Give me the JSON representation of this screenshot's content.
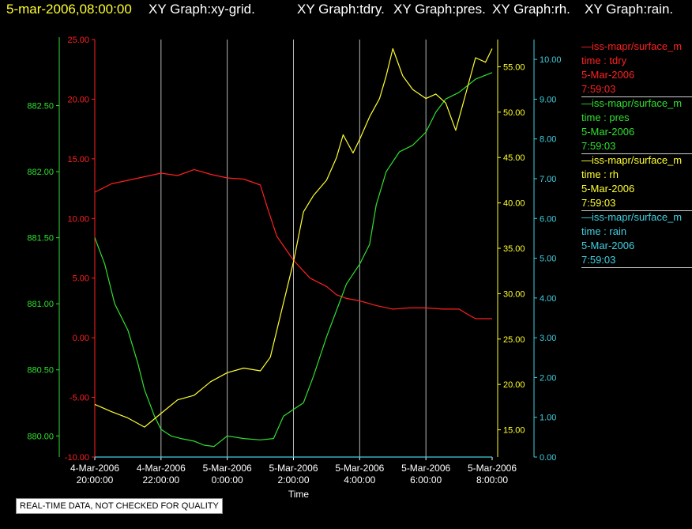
{
  "header": {
    "timestamp": "5-mar-2006,08:00:00",
    "graphs": [
      "XY Graph:xy-grid.",
      "XY Graph:tdry.",
      "XY Graph:pres.",
      "XY Graph:rh.",
      "XY Graph:rain."
    ]
  },
  "legend": [
    {
      "source": "—iss-mapr/surface_m",
      "var": "time : tdry",
      "date": "5-Mar-2006",
      "time": "7:59:03",
      "color": "#ff2020"
    },
    {
      "source": "—iss-mapr/surface_m",
      "var": "time : pres",
      "date": "5-Mar-2006",
      "time": "7:59:03",
      "color": "#30e030"
    },
    {
      "source": "—iss-mapr/surface_m",
      "var": "time : rh",
      "date": "5-Mar-2006",
      "time": "7:59:03",
      "color": "#ffff30"
    },
    {
      "source": "—iss-mapr/surface_m",
      "var": "time : rain",
      "date": "5-Mar-2006",
      "time": "7:59:03",
      "color": "#40d0e0"
    }
  ],
  "quality_note": "REAL-TIME DATA, NOT CHECKED FOR QUALITY",
  "chart_data": {
    "type": "line",
    "xlabel": "Time",
    "x_ticks": [
      {
        "date": "4-Mar-2006",
        "time": "20:00:00",
        "hours": 20
      },
      {
        "date": "4-Mar-2006",
        "time": "22:00:00",
        "hours": 22
      },
      {
        "date": "5-Mar-2006",
        "time": "0:00:00",
        "hours": 24
      },
      {
        "date": "5-Mar-2006",
        "time": "2:00:00",
        "hours": 26
      },
      {
        "date": "5-Mar-2006",
        "time": "4:00:00",
        "hours": 28
      },
      {
        "date": "5-Mar-2006",
        "time": "6:00:00",
        "hours": 30
      },
      {
        "date": "5-Mar-2006",
        "time": "8:00:00",
        "hours": 32
      }
    ],
    "x_range_hours": [
      20,
      32
    ],
    "grid": true,
    "axes": {
      "tdry": {
        "color": "#ff2020",
        "range": [
          -10,
          25
        ],
        "ticks": [
          "-10.00",
          "-5.00",
          "0.00",
          "5.00",
          "10.00",
          "15.00",
          "20.00",
          "25.00"
        ]
      },
      "pres": {
        "color": "#30e030",
        "range": [
          879.84,
          883.0
        ],
        "ticks": [
          "880.00",
          "880.50",
          "881.00",
          "881.50",
          "882.00",
          "882.50"
        ]
      },
      "rh": {
        "color": "#ffff30",
        "range": [
          12.0,
          58.0
        ],
        "ticks": [
          "15.00",
          "20.00",
          "25.00",
          "30.00",
          "35.00",
          "40.00",
          "45.00",
          "50.00",
          "55.00"
        ]
      },
      "rain": {
        "color": "#40d0e0",
        "range": [
          0.0,
          10.5
        ],
        "ticks": [
          "0.00",
          "1.00",
          "2.00",
          "3.00",
          "4.00",
          "5.00",
          "6.00",
          "7.00",
          "8.00",
          "9.00",
          "10.00"
        ]
      }
    },
    "series": [
      {
        "axis": "tdry",
        "name": "time : tdry",
        "points": [
          [
            20.0,
            12.2
          ],
          [
            20.5,
            12.9
          ],
          [
            21.0,
            13.2
          ],
          [
            21.5,
            13.5
          ],
          [
            22.0,
            13.8
          ],
          [
            22.5,
            13.6
          ],
          [
            23.0,
            14.1
          ],
          [
            23.5,
            13.7
          ],
          [
            24.0,
            13.4
          ],
          [
            24.5,
            13.3
          ],
          [
            25.0,
            12.8
          ],
          [
            25.2,
            11.0
          ],
          [
            25.5,
            8.5
          ],
          [
            26.0,
            6.5
          ],
          [
            26.5,
            5.0
          ],
          [
            27.0,
            4.3
          ],
          [
            27.3,
            3.6
          ],
          [
            27.6,
            3.3
          ],
          [
            28.0,
            3.1
          ],
          [
            28.5,
            2.7
          ],
          [
            29.0,
            2.4
          ],
          [
            29.5,
            2.5
          ],
          [
            30.0,
            2.5
          ],
          [
            30.5,
            2.4
          ],
          [
            31.0,
            2.4
          ],
          [
            31.3,
            1.9
          ],
          [
            31.5,
            1.6
          ],
          [
            32.0,
            1.6
          ]
        ]
      },
      {
        "axis": "pres",
        "name": "time : pres",
        "points": [
          [
            20.0,
            881.5
          ],
          [
            20.3,
            881.3
          ],
          [
            20.6,
            881.0
          ],
          [
            21.0,
            880.8
          ],
          [
            21.3,
            880.55
          ],
          [
            21.5,
            880.35
          ],
          [
            21.8,
            880.15
          ],
          [
            22.0,
            880.05
          ],
          [
            22.3,
            880.0
          ],
          [
            22.6,
            879.98
          ],
          [
            23.0,
            879.96
          ],
          [
            23.3,
            879.93
          ],
          [
            23.6,
            879.92
          ],
          [
            24.0,
            880.0
          ],
          [
            24.5,
            879.98
          ],
          [
            25.0,
            879.97
          ],
          [
            25.4,
            879.98
          ],
          [
            25.7,
            880.15
          ],
          [
            26.0,
            880.2
          ],
          [
            26.3,
            880.25
          ],
          [
            26.6,
            880.45
          ],
          [
            27.0,
            880.75
          ],
          [
            27.3,
            880.95
          ],
          [
            27.6,
            881.15
          ],
          [
            28.0,
            881.3
          ],
          [
            28.3,
            881.45
          ],
          [
            28.5,
            881.75
          ],
          [
            28.8,
            882.0
          ],
          [
            29.2,
            882.15
          ],
          [
            29.6,
            882.2
          ],
          [
            30.0,
            882.3
          ],
          [
            30.3,
            882.45
          ],
          [
            30.6,
            882.55
          ],
          [
            31.0,
            882.6
          ],
          [
            31.5,
            882.7
          ],
          [
            32.0,
            882.75
          ]
        ]
      },
      {
        "axis": "rh",
        "name": "time : rh",
        "points": [
          [
            20.0,
            17.8
          ],
          [
            20.5,
            17.0
          ],
          [
            21.0,
            16.3
          ],
          [
            21.5,
            15.3
          ],
          [
            22.0,
            16.8
          ],
          [
            22.5,
            18.3
          ],
          [
            23.0,
            18.8
          ],
          [
            23.5,
            20.3
          ],
          [
            24.0,
            21.3
          ],
          [
            24.5,
            21.8
          ],
          [
            25.0,
            21.5
          ],
          [
            25.3,
            23.0
          ],
          [
            25.6,
            27.5
          ],
          [
            26.0,
            33.5
          ],
          [
            26.3,
            39.0
          ],
          [
            26.6,
            40.8
          ],
          [
            27.0,
            42.5
          ],
          [
            27.3,
            45.0
          ],
          [
            27.5,
            47.5
          ],
          [
            27.8,
            45.5
          ],
          [
            28.0,
            47.0
          ],
          [
            28.3,
            49.5
          ],
          [
            28.6,
            51.5
          ],
          [
            28.8,
            54.0
          ],
          [
            29.0,
            57.0
          ],
          [
            29.3,
            54.0
          ],
          [
            29.6,
            52.5
          ],
          [
            30.0,
            51.5
          ],
          [
            30.3,
            52.0
          ],
          [
            30.6,
            51.0
          ],
          [
            30.9,
            48.0
          ],
          [
            31.2,
            52.0
          ],
          [
            31.5,
            56.0
          ],
          [
            31.8,
            55.5
          ],
          [
            32.0,
            57.0
          ]
        ]
      },
      {
        "axis": "rain",
        "name": "time : rain",
        "points": [
          [
            20.0,
            0.0
          ],
          [
            32.0,
            0.0
          ]
        ]
      }
    ]
  }
}
